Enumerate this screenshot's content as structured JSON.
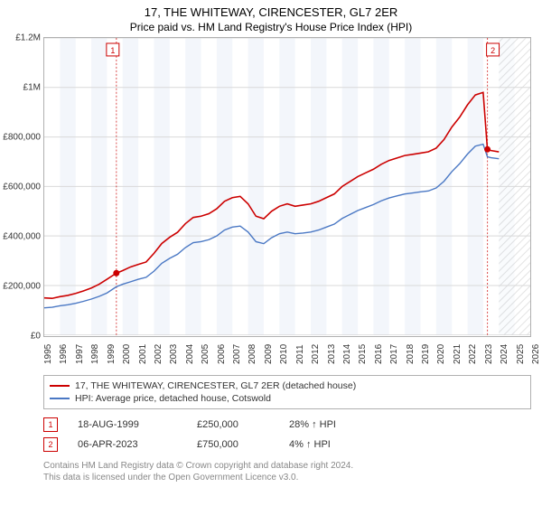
{
  "title": "17, THE WHITEWAY, CIRENCESTER, GL7 2ER",
  "subtitle": "Price paid vs. HM Land Registry's House Price Index (HPI)",
  "chart": {
    "type": "line",
    "background_color": "#ffffff",
    "band_color": "#f3f6fb",
    "future_hatch_color": "#c7c7c7",
    "border_color": "#b0b0b0",
    "grid_color": "#d9d9d9",
    "axis_font_size": 10,
    "x": {
      "min": 1995,
      "max": 2026,
      "ticks": [
        1995,
        1996,
        1997,
        1998,
        1999,
        2000,
        2001,
        2002,
        2003,
        2004,
        2005,
        2006,
        2007,
        2008,
        2009,
        2010,
        2011,
        2012,
        2013,
        2014,
        2015,
        2016,
        2017,
        2018,
        2019,
        2020,
        2021,
        2022,
        2023,
        2024,
        2025,
        2026
      ]
    },
    "y": {
      "min": 0,
      "max": 1200000,
      "tick_step": 200000,
      "labels": [
        "£0",
        "£200,000",
        "£400,000",
        "£600,000",
        "£800,000",
        "£1M",
        "£1.2M"
      ]
    },
    "series": [
      {
        "name": "17, THE WHITEWAY, CIRENCESTER, GL7 2ER (detached house)",
        "color": "#cc0000",
        "line_width": 1.6,
        "points": [
          [
            1995.0,
            150000
          ],
          [
            1995.5,
            148000
          ],
          [
            1996.0,
            155000
          ],
          [
            1996.5,
            160000
          ],
          [
            1997.0,
            168000
          ],
          [
            1997.5,
            178000
          ],
          [
            1998.0,
            190000
          ],
          [
            1998.5,
            205000
          ],
          [
            1999.0,
            225000
          ],
          [
            1999.6,
            250000
          ],
          [
            2000.0,
            260000
          ],
          [
            2000.5,
            275000
          ],
          [
            2001.0,
            285000
          ],
          [
            2001.5,
            295000
          ],
          [
            2002.0,
            330000
          ],
          [
            2002.5,
            370000
          ],
          [
            2003.0,
            395000
          ],
          [
            2003.5,
            415000
          ],
          [
            2004.0,
            450000
          ],
          [
            2004.5,
            475000
          ],
          [
            2005.0,
            480000
          ],
          [
            2005.5,
            490000
          ],
          [
            2006.0,
            510000
          ],
          [
            2006.5,
            540000
          ],
          [
            2007.0,
            555000
          ],
          [
            2007.5,
            560000
          ],
          [
            2008.0,
            530000
          ],
          [
            2008.5,
            480000
          ],
          [
            2009.0,
            470000
          ],
          [
            2009.5,
            500000
          ],
          [
            2010.0,
            520000
          ],
          [
            2010.5,
            530000
          ],
          [
            2011.0,
            520000
          ],
          [
            2011.5,
            525000
          ],
          [
            2012.0,
            530000
          ],
          [
            2012.5,
            540000
          ],
          [
            2013.0,
            555000
          ],
          [
            2013.5,
            570000
          ],
          [
            2014.0,
            600000
          ],
          [
            2014.5,
            620000
          ],
          [
            2015.0,
            640000
          ],
          [
            2015.5,
            655000
          ],
          [
            2016.0,
            670000
          ],
          [
            2016.5,
            690000
          ],
          [
            2017.0,
            705000
          ],
          [
            2017.5,
            715000
          ],
          [
            2018.0,
            725000
          ],
          [
            2018.5,
            730000
          ],
          [
            2019.0,
            735000
          ],
          [
            2019.5,
            740000
          ],
          [
            2020.0,
            755000
          ],
          [
            2020.5,
            790000
          ],
          [
            2021.0,
            840000
          ],
          [
            2021.5,
            880000
          ],
          [
            2022.0,
            930000
          ],
          [
            2022.5,
            970000
          ],
          [
            2023.0,
            980000
          ],
          [
            2023.27,
            750000
          ],
          [
            2023.5,
            745000
          ],
          [
            2024.0,
            740000
          ]
        ]
      },
      {
        "name": "HPI: Average price, detached house, Cotswold",
        "color": "#4a78c4",
        "line_width": 1.4,
        "points": [
          [
            1995.0,
            110000
          ],
          [
            1995.5,
            112000
          ],
          [
            1996.0,
            118000
          ],
          [
            1996.5,
            122000
          ],
          [
            1997.0,
            128000
          ],
          [
            1997.5,
            136000
          ],
          [
            1998.0,
            145000
          ],
          [
            1998.5,
            156000
          ],
          [
            1999.0,
            170000
          ],
          [
            1999.6,
            195000
          ],
          [
            2000.0,
            205000
          ],
          [
            2000.5,
            215000
          ],
          [
            2001.0,
            225000
          ],
          [
            2001.5,
            233000
          ],
          [
            2002.0,
            258000
          ],
          [
            2002.5,
            290000
          ],
          [
            2003.0,
            310000
          ],
          [
            2003.5,
            326000
          ],
          [
            2004.0,
            353000
          ],
          [
            2004.5,
            373000
          ],
          [
            2005.0,
            377000
          ],
          [
            2005.5,
            385000
          ],
          [
            2006.0,
            400000
          ],
          [
            2006.5,
            424000
          ],
          [
            2007.0,
            436000
          ],
          [
            2007.5,
            440000
          ],
          [
            2008.0,
            416000
          ],
          [
            2008.5,
            377000
          ],
          [
            2009.0,
            369000
          ],
          [
            2009.5,
            393000
          ],
          [
            2010.0,
            409000
          ],
          [
            2010.5,
            416000
          ],
          [
            2011.0,
            409000
          ],
          [
            2011.5,
            412000
          ],
          [
            2012.0,
            416000
          ],
          [
            2012.5,
            424000
          ],
          [
            2013.0,
            436000
          ],
          [
            2013.5,
            448000
          ],
          [
            2014.0,
            471000
          ],
          [
            2014.5,
            487000
          ],
          [
            2015.0,
            503000
          ],
          [
            2015.5,
            515000
          ],
          [
            2016.0,
            527000
          ],
          [
            2016.5,
            542000
          ],
          [
            2017.0,
            554000
          ],
          [
            2017.5,
            562000
          ],
          [
            2018.0,
            570000
          ],
          [
            2018.5,
            574000
          ],
          [
            2019.0,
            578000
          ],
          [
            2019.5,
            582000
          ],
          [
            2020.0,
            594000
          ],
          [
            2020.5,
            621000
          ],
          [
            2021.0,
            660000
          ],
          [
            2021.5,
            692000
          ],
          [
            2022.0,
            731000
          ],
          [
            2022.5,
            763000
          ],
          [
            2023.0,
            771000
          ],
          [
            2023.27,
            720000
          ],
          [
            2023.5,
            716000
          ],
          [
            2024.0,
            712000
          ]
        ]
      }
    ],
    "markers": [
      {
        "index": "1",
        "x": 1999.6,
        "y": 250000,
        "color": "#cc0000"
      },
      {
        "index": "2",
        "x": 2023.27,
        "y": 750000,
        "color": "#cc0000"
      }
    ]
  },
  "legend": {
    "items": [
      {
        "color": "#cc0000",
        "label": "17, THE WHITEWAY, CIRENCESTER, GL7 2ER (detached house)"
      },
      {
        "color": "#4a78c4",
        "label": "HPI: Average price, detached house, Cotswold"
      }
    ]
  },
  "sales": [
    {
      "index": "1",
      "color": "#cc0000",
      "date": "18-AUG-1999",
      "price": "£250,000",
      "hpi": "28% ↑ HPI"
    },
    {
      "index": "2",
      "color": "#cc0000",
      "date": "06-APR-2023",
      "price": "£750,000",
      "hpi": "4% ↑ HPI"
    }
  ],
  "footer": {
    "line1": "Contains HM Land Registry data © Crown copyright and database right 2024.",
    "line2": "This data is licensed under the Open Government Licence v3.0."
  }
}
